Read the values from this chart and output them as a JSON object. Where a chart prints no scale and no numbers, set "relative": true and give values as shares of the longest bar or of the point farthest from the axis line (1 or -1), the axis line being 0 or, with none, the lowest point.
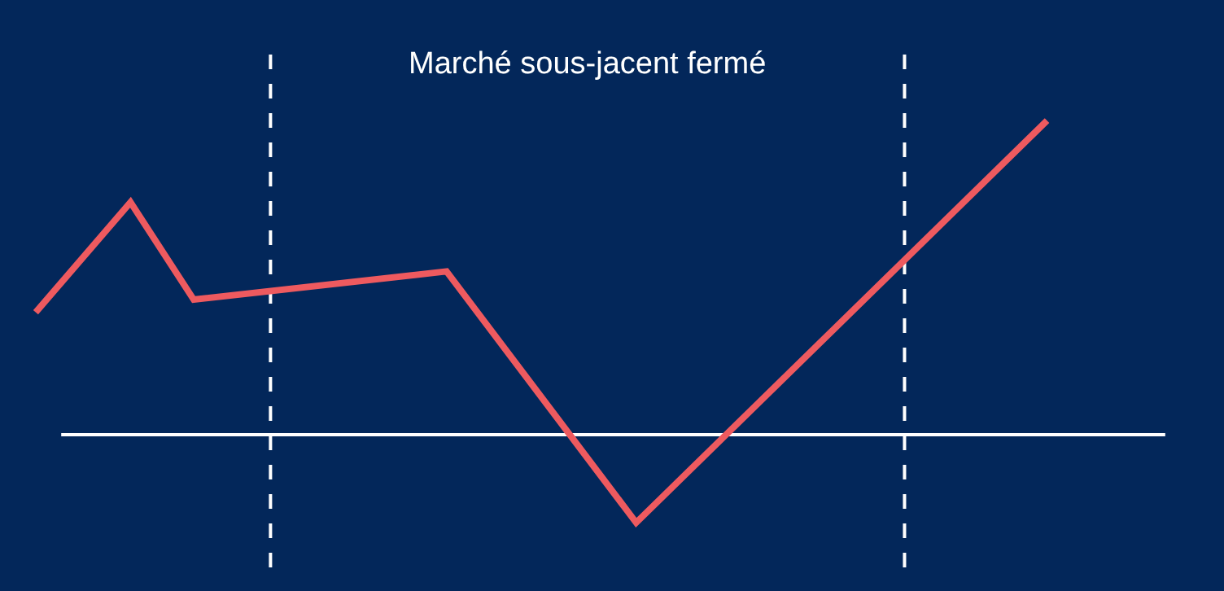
{
  "chart_data": {
    "type": "line",
    "relative": true,
    "categories": [
      null,
      null,
      null,
      null,
      null,
      null,
      null,
      null,
      null,
      null,
      null,
      null,
      null,
      null,
      null,
      null,
      null,
      null,
      null,
      null,
      null,
      null,
      null,
      null,
      null,
      null,
      null,
      null,
      null,
      null,
      null,
      null,
      null
    ],
    "series": [
      {
        "color": "#ee5a5f",
        "values": [
          0.39,
          null,
          null,
          0.74,
          null,
          0.43,
          null,
          null,
          null,
          null,
          null,
          null,
          null,
          0.52,
          null,
          null,
          null,
          null,
          null,
          -0.28,
          null,
          null,
          null,
          null,
          null,
          null,
          null,
          null,
          null,
          null,
          null,
          null,
          1
        ]
      }
    ],
    "marker": "none",
    "line_style": "solid",
    "grid": false,
    "annotations": [
      "Marché sous-jacent fermé"
    ]
  }
}
